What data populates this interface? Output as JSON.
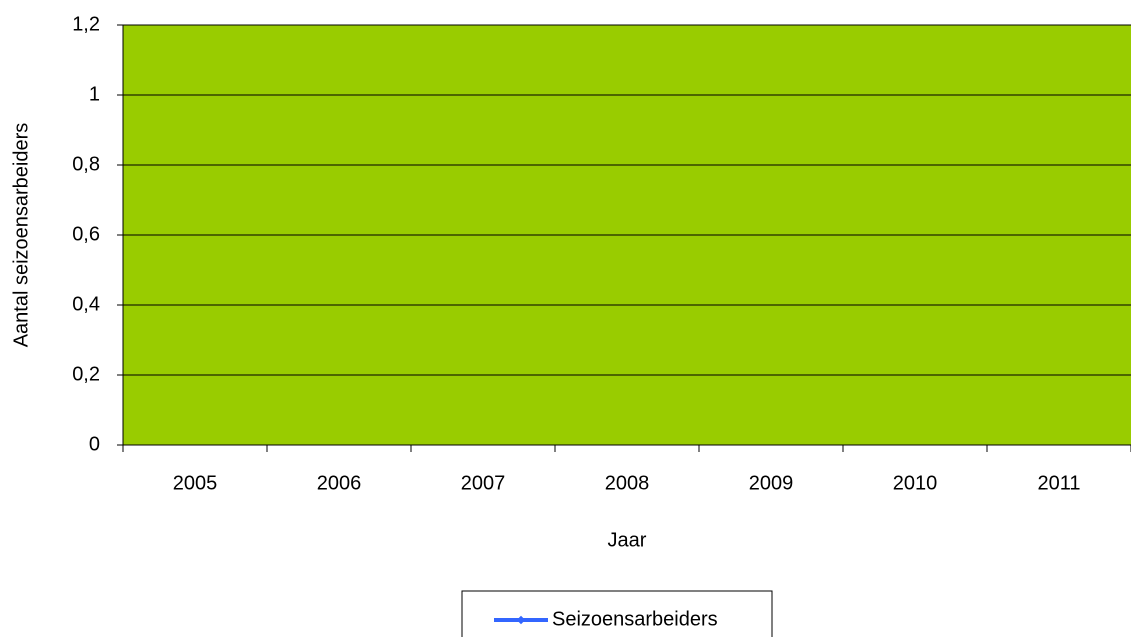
{
  "chart_data": {
    "type": "line",
    "categories": [
      "2005",
      "2006",
      "2007",
      "2008",
      "2009",
      "2010",
      "2011"
    ],
    "series": [
      {
        "name": "Seizoensarbeiders",
        "color": "#3366ff",
        "values": [
          null,
          null,
          null,
          null,
          null,
          null,
          null
        ]
      }
    ],
    "xlabel": "Jaar",
    "ylabel": "Aantal seizoensarbeiders",
    "ylim": [
      0,
      1.2
    ],
    "yticks": [
      0,
      {
        "value": 0.2,
        "label": "0,2"
      },
      {
        "value": 0.4,
        "label": "0,4"
      },
      {
        "value": 0.6,
        "label": "0,6"
      },
      {
        "value": 0.8,
        "label": "0,8"
      },
      1,
      {
        "value": 1.2,
        "label": "1,2"
      }
    ],
    "grid": true,
    "plot_background": "#99cc00",
    "legend": "bottom"
  }
}
